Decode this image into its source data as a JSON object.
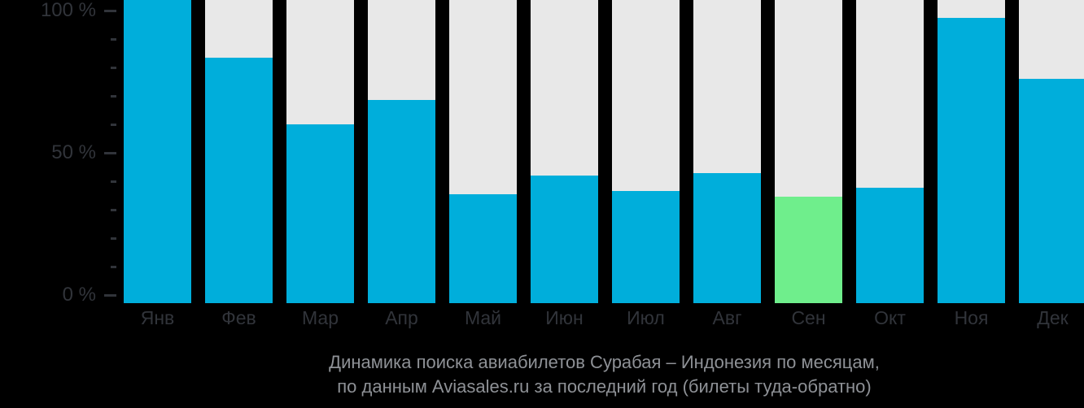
{
  "chart_data": {
    "type": "bar",
    "title": "Динамика поиска авиабилетов Сурабая – Индонезия по месяцам,",
    "subtitle": "по данным Aviasales.ru за последний год (билеты туда-обратно)",
    "categories": [
      "Янв",
      "Фев",
      "Мар",
      "Апр",
      "Май",
      "Июн",
      "Июл",
      "Авг",
      "Сен",
      "Окт",
      "Ноя",
      "Дек"
    ],
    "values": [
      100,
      81,
      59,
      67,
      36,
      42,
      37,
      43,
      35,
      38,
      94,
      74
    ],
    "unit": "%",
    "ylim": [
      0,
      100
    ],
    "y_major_ticks": [
      {
        "value": 100,
        "label": "100 %"
      },
      {
        "value": 50,
        "label": "50 %"
      },
      {
        "value": 0,
        "label": "0 %"
      }
    ],
    "y_minor_tick_step": 10,
    "grid": false,
    "legend": "none",
    "highlight_index": 8,
    "colors": {
      "background": "#000000",
      "bar": "#00AEDB",
      "highlight_bar": "#6FEE8C",
      "track": "#E8E8E8",
      "axis_text": "#31343A",
      "tick_mark": "#31343A",
      "caption_text": "#8E9196"
    }
  },
  "bar_names": [
    "jan",
    "feb",
    "mar",
    "apr",
    "may",
    "jun",
    "jul",
    "aug",
    "sep",
    "oct",
    "nov",
    "dec"
  ]
}
